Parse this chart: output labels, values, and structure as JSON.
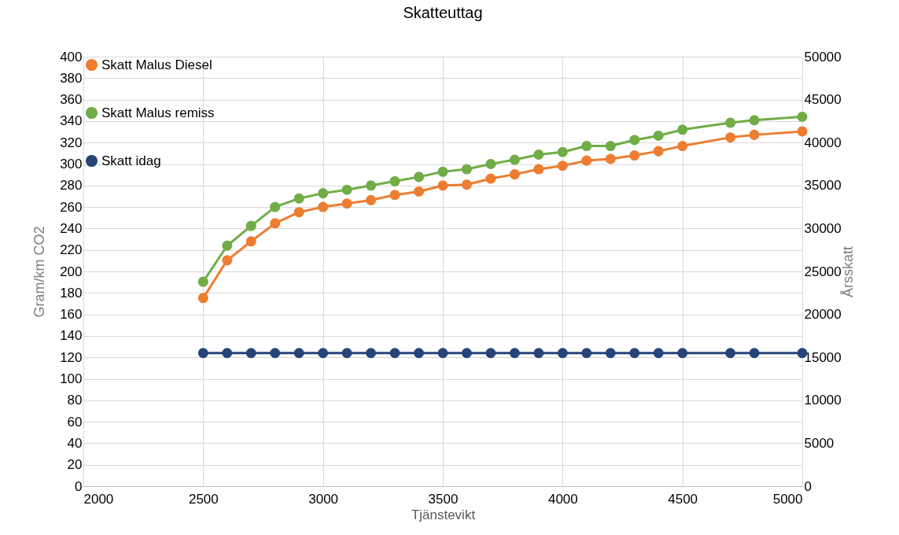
{
  "chart_data": {
    "type": "line",
    "title": "Skatteuttag",
    "xlabel": "Tjänstevikt",
    "ylabel": "Gram/km CO2",
    "y2label": "Årsskatt",
    "x": [
      2500,
      2600,
      2700,
      2800,
      2900,
      3000,
      3100,
      3200,
      3300,
      3400,
      3500,
      3600,
      3700,
      3800,
      3900,
      4000,
      4100,
      4200,
      4300,
      4400,
      4500,
      4700,
      4800,
      5000
    ],
    "series": [
      {
        "name": "Skatt Malus Diesel",
        "color": "#ed7d31",
        "axis": "y2",
        "values": [
          21900,
          26300,
          28500,
          30600,
          31900,
          32500,
          32900,
          33300,
          33900,
          34300,
          35000,
          35100,
          35800,
          36300,
          36900,
          37300,
          37900,
          38100,
          38500,
          39000,
          39600,
          40600,
          40900,
          41300
        ]
      },
      {
        "name": "Skatt Malus remiss",
        "color": "#70ad47",
        "axis": "y2",
        "values": [
          23800,
          28000,
          30300,
          32500,
          33500,
          34100,
          34500,
          35000,
          35500,
          36000,
          36600,
          36900,
          37500,
          38000,
          38600,
          38900,
          39600,
          39600,
          40300,
          40800,
          41500,
          42300,
          42600,
          43000
        ]
      },
      {
        "name": "Skatt idag",
        "color": "#264478",
        "axis": "y2",
        "values": [
          15500,
          15500,
          15500,
          15500,
          15500,
          15500,
          15500,
          15500,
          15500,
          15500,
          15500,
          15500,
          15500,
          15500,
          15500,
          15500,
          15500,
          15500,
          15500,
          15500,
          15500,
          15500,
          15500,
          15500
        ]
      }
    ],
    "xlim": [
      2000,
      5000
    ],
    "xticks": [
      2000,
      2500,
      3000,
      3500,
      4000,
      4500,
      5000
    ],
    "ylim": [
      0,
      400
    ],
    "yticks": [
      0,
      20,
      40,
      60,
      80,
      100,
      120,
      140,
      160,
      180,
      200,
      220,
      240,
      260,
      280,
      300,
      320,
      340,
      360,
      380,
      400
    ],
    "y2lim": [
      0,
      50000
    ],
    "y2ticks": [
      0,
      5000,
      10000,
      15000,
      20000,
      25000,
      30000,
      35000,
      40000,
      45000,
      50000
    ],
    "grid": true,
    "legend": "top left",
    "marker": "circle",
    "line_style": "solid"
  }
}
